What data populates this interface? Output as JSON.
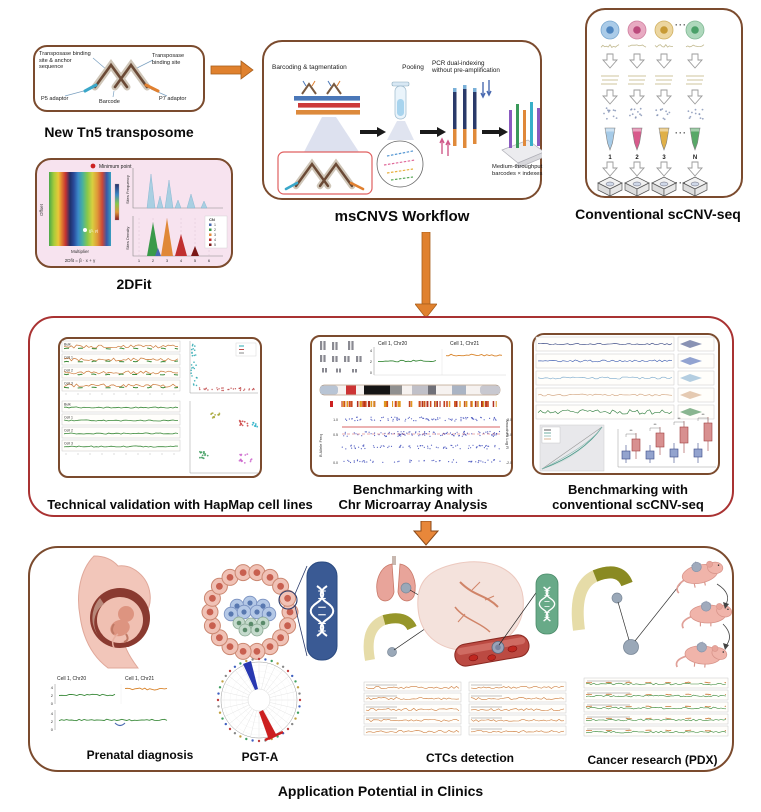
{
  "tn5": {
    "caption": "New Tn5 transposome",
    "label_left": "Transposase binding\nsite & anchor\nsequence",
    "label_right": "Transposase\nbinding site",
    "p5": "P5 adaptor",
    "barcode": "Barcode",
    "p7": "P7 adaptor"
  },
  "workflow": {
    "caption": "msCNVS Workflow",
    "step_tagmentation": "Barcoding & tagmentation",
    "step_pooling": "Pooling",
    "step_pcr": "PCR dual-indexing\nwithout pre-amplification",
    "chip_label": "Medium-throughput\nbarcodes × indexes"
  },
  "conventional": {
    "caption": "Conventional scCNV-seq",
    "tube_labels": [
      "1",
      "2",
      "3",
      "N"
    ],
    "ellipsis": "···"
  },
  "twodfit": {
    "caption": "2DFit",
    "legend_min": "Minimum point",
    "point_label": "(β, γ)",
    "ylabel": "Offset",
    "xlabel": "Multiplier",
    "formula": "2Dfit = β · x + γ",
    "freq_ylabel": "Sites Frequency",
    "dens_ylabel": "Sites Density",
    "cn_title": "CN",
    "cn_items": [
      "1",
      "2",
      "3",
      "4",
      "5"
    ],
    "xticks": [
      "1",
      "2",
      "3",
      "4",
      "5",
      "6"
    ]
  },
  "validation": {
    "caption": "Technical validation with HapMap cell lines",
    "tracks": [
      "Bulk",
      "Cell 1",
      "Cell 2",
      "Cell 3"
    ]
  },
  "microarray": {
    "caption": "Benchmarking with\nChr Microarray Analysis",
    "panel_left": "Cell 1, Chr20",
    "panel_right": "Cell 1, Chr21",
    "yticks": [
      "4",
      "2",
      "0"
    ],
    "left_axis": "B Allele Freq",
    "right_axis": "Smoothed Log R",
    "left_ticks": [
      "1.0",
      "0.5",
      "0.0"
    ],
    "right_ticks": [
      "2.0",
      "0.0",
      "-2.0"
    ]
  },
  "benchmark": {
    "caption": "Benchmarking with\nconventional scCNV-seq"
  },
  "clinics": {
    "prenatal_caption": "Prenatal diagnosis",
    "prenatal_panel_left": "Cell 1, Chr20",
    "prenatal_panel_right": "Cell 1, Chr21",
    "prenatal_yticks": [
      "4",
      "2",
      "0"
    ],
    "pgta_caption": "PGT-A",
    "ctc_caption": "CTCs detection",
    "pdx_caption": "Cancer research (PDX)"
  },
  "footer": "Application Potential in Clinics"
}
